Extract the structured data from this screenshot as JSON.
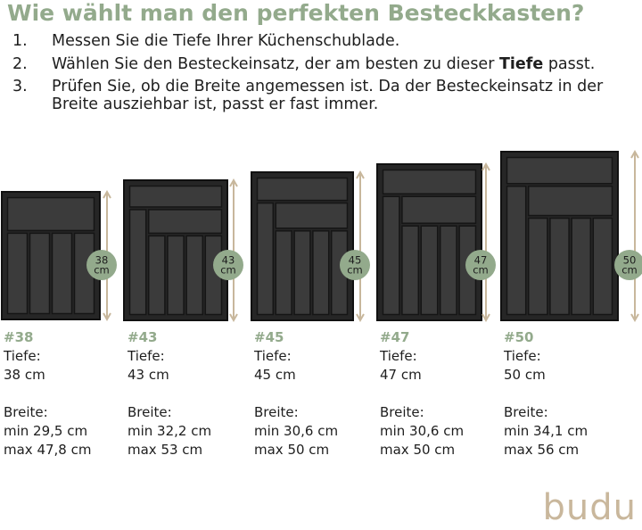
{
  "title": "Wie wählt man den perfekten Besteckkasten?",
  "steps": [
    {
      "number": "1.",
      "parts": [
        {
          "text": "Messen Sie die Tiefe Ihrer Küchenschublade."
        }
      ]
    },
    {
      "number": "2.",
      "parts": [
        {
          "text": "Wählen Sie den Besteckeinsatz, der am besten zu dieser "
        },
        {
          "text": "Tiefe",
          "bold": true
        },
        {
          "text": " passt."
        }
      ]
    },
    {
      "number": "3.",
      "parts": [
        {
          "text": "Prüfen Sie, ob die Breite angemessen ist. Da der Besteckeinsatz in der"
        }
      ],
      "continuation": "Breite ausziehbar ist, passt er fast immer."
    }
  ],
  "products": [
    {
      "code": "#38",
      "badge": [
        "38",
        "cm"
      ],
      "depth_label": "Tiefe:",
      "depth": "38 cm",
      "width_label": "Breite:",
      "min": "min 29,5 cm",
      "max": "max 47,8 cm"
    },
    {
      "code": "#43",
      "badge": [
        "43",
        "cm"
      ],
      "depth_label": "Tiefe:",
      "depth": "43 cm",
      "width_label": "Breite:",
      "min": "min 32,2 cm",
      "max": "max 53 cm"
    },
    {
      "code": "#45",
      "badge": [
        "45",
        "cm"
      ],
      "depth_label": "Tiefe:",
      "depth": "45 cm",
      "width_label": "Breite:",
      "min": "min 30,6 cm",
      "max": "max 50 cm"
    },
    {
      "code": "#47",
      "badge": [
        "47",
        "cm"
      ],
      "depth_label": "Tiefe:",
      "depth": "47 cm",
      "width_label": "Breite:",
      "min": "min 30,6 cm",
      "max": "max 50 cm"
    },
    {
      "code": "#50",
      "badge": [
        "50",
        "cm"
      ],
      "depth_label": "Tiefe:",
      "depth": "50 cm",
      "width_label": "Breite:",
      "min": "min 34,1 cm",
      "max": "max 56 cm"
    }
  ],
  "logo": "budu"
}
